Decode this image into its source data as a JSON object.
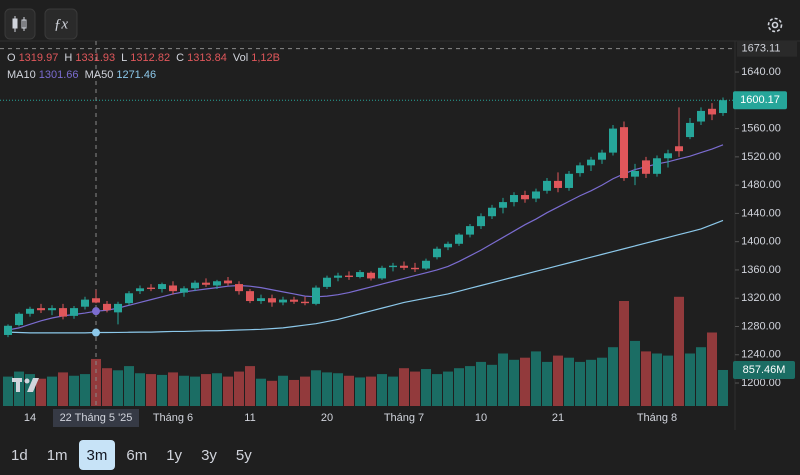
{
  "chart_data": {
    "type": "candlestick",
    "categories": [
      null,
      null,
      "14",
      null,
      null,
      null,
      null,
      null,
      "22 Tháng 5 '25",
      null,
      null,
      null,
      null,
      null,
      null,
      "Tháng 6",
      null,
      null,
      null,
      null,
      null,
      null,
      "11",
      null,
      null,
      null,
      null,
      null,
      null,
      "20",
      null,
      null,
      null,
      null,
      null,
      null,
      "Tháng 7",
      null,
      null,
      null,
      null,
      null,
      null,
      "10",
      null,
      null,
      null,
      null,
      null,
      null,
      "21",
      null,
      null,
      null,
      null,
      null,
      null,
      null,
      null,
      "Tháng 8",
      null,
      null,
      null,
      null,
      null,
      null
    ],
    "open": [
      1268,
      1282,
      1298,
      1306,
      1303,
      1306,
      1295,
      1308,
      1319.97,
      1312,
      1300,
      1313,
      1330,
      1335,
      1333,
      1338,
      1328,
      1334,
      1342,
      1338,
      1345,
      1340,
      1330,
      1316,
      1320,
      1314,
      1318,
      1315,
      1312,
      1336,
      1349,
      1352,
      1350,
      1356,
      1348,
      1364,
      1366,
      1363,
      1362,
      1378,
      1392,
      1397,
      1410,
      1422,
      1436,
      1448,
      1456,
      1466,
      1461,
      1472,
      1486,
      1476,
      1497,
      1508,
      1516,
      1526,
      1562,
      1492,
      1515,
      1496,
      1518,
      1535,
      1548,
      1570,
      1588,
      1582
    ],
    "high": [
      1283,
      1300,
      1308,
      1312,
      1310,
      1312,
      1309,
      1322,
      1331.93,
      1316,
      1315,
      1330,
      1338,
      1340,
      1342,
      1344,
      1337,
      1345,
      1348,
      1346,
      1350,
      1344,
      1333,
      1325,
      1325,
      1322,
      1322,
      1322,
      1338,
      1352,
      1356,
      1358,
      1360,
      1358,
      1366,
      1370,
      1372,
      1370,
      1376,
      1393,
      1400,
      1412,
      1425,
      1440,
      1452,
      1462,
      1470,
      1472,
      1475,
      1490,
      1498,
      1500,
      1512,
      1520,
      1530,
      1565,
      1570,
      1510,
      1520,
      1522,
      1530,
      1590,
      1575,
      1590,
      1596,
      1604
    ],
    "low": [
      1265,
      1280,
      1294,
      1299,
      1296,
      1290,
      1291,
      1304,
      1312.82,
      1300,
      1283,
      1310,
      1326,
      1330,
      1328,
      1325,
      1322,
      1330,
      1336,
      1333,
      1338,
      1325,
      1313,
      1312,
      1308,
      1310,
      1312,
      1310,
      1310,
      1333,
      1344,
      1346,
      1348,
      1345,
      1346,
      1358,
      1360,
      1357,
      1360,
      1375,
      1388,
      1394,
      1406,
      1418,
      1432,
      1440,
      1450,
      1455,
      1456,
      1468,
      1470,
      1472,
      1492,
      1500,
      1510,
      1522,
      1486,
      1480,
      1490,
      1492,
      1505,
      1520,
      1545,
      1565,
      1572,
      1578
    ],
    "close": [
      1281,
      1298,
      1305,
      1303,
      1306,
      1294,
      1306,
      1318,
      1313.84,
      1303,
      1312,
      1327,
      1334,
      1333,
      1340,
      1330,
      1334,
      1342,
      1339,
      1344,
      1341,
      1330,
      1316,
      1320,
      1314,
      1318,
      1315,
      1313,
      1335,
      1349,
      1352,
      1350,
      1357,
      1348,
      1363,
      1366,
      1363,
      1361,
      1373,
      1390,
      1397,
      1410,
      1422,
      1436,
      1448,
      1456,
      1466,
      1460,
      1471,
      1486,
      1476,
      1496,
      1508,
      1516,
      1526,
      1560,
      1490,
      1500,
      1496,
      1518,
      1525,
      1528,
      1568,
      1585,
      1580,
      1600.17
    ],
    "volume": [
      700,
      820,
      760,
      650,
      700,
      800,
      720,
      760,
      1120,
      900,
      850,
      950,
      780,
      760,
      740,
      800,
      720,
      700,
      760,
      780,
      700,
      820,
      950,
      650,
      600,
      720,
      620,
      700,
      850,
      800,
      780,
      720,
      680,
      700,
      760,
      700,
      900,
      820,
      880,
      760,
      820,
      900,
      950,
      1050,
      980,
      1250,
      1100,
      1150,
      1300,
      1050,
      1200,
      1150,
      1050,
      1100,
      1150,
      1400,
      2500,
      1550,
      1300,
      1250,
      1200,
      2600,
      1250,
      1400,
      1750,
      857.46
    ],
    "up_color": "#26a69a",
    "down_color": "#e0575b",
    "up_volume_color": "#1b6d64",
    "down_volume_color": "#923a3c",
    "series": [
      {
        "name": "MA10",
        "color": "#7b6cd0",
        "values": [
          1275,
          1278,
          1283,
          1288,
          1292,
          1295,
          1297,
          1299,
          1301.66,
          1303,
          1306,
          1310,
          1314,
          1318,
          1322,
          1326,
          1329,
          1331,
          1333,
          1335,
          1337,
          1338,
          1337,
          1335,
          1332,
          1329,
          1326,
          1323,
          1322,
          1323,
          1325,
          1328,
          1332,
          1336,
          1340,
          1344,
          1348,
          1352,
          1356,
          1360,
          1365,
          1372,
          1380,
          1388,
          1397,
          1406,
          1415,
          1424,
          1432,
          1441,
          1449,
          1457,
          1465,
          1472,
          1480,
          1489,
          1496,
          1502,
          1506,
          1510,
          1513,
          1517,
          1521,
          1526,
          1531,
          1537
        ]
      },
      {
        "name": "MA50",
        "color": "#8cc8ea",
        "values": [
          1272,
          1271.5,
          1271,
          1271,
          1271,
          1271,
          1271,
          1271,
          1271.46,
          1271.5,
          1271.6,
          1271.8,
          1272,
          1272,
          1272.5,
          1273,
          1273,
          1273.5,
          1274,
          1274,
          1274.5,
          1275,
          1275.5,
          1276,
          1277,
          1278,
          1280,
          1282,
          1284,
          1287,
          1290,
          1294,
          1298,
          1302,
          1306,
          1310,
          1314,
          1317,
          1320,
          1323,
          1326,
          1330,
          1334,
          1338,
          1342,
          1346,
          1350,
          1354,
          1358,
          1362,
          1366,
          1370,
          1374,
          1378,
          1382,
          1386,
          1390,
          1394,
          1398,
          1402,
          1406,
          1410,
          1414,
          1418,
          1424,
          1430
        ]
      }
    ],
    "ylim": [
      1160,
      1690
    ],
    "yticks": [
      {
        "value": 1200,
        "label": "1200.00"
      },
      {
        "value": 1240,
        "label": "1240.00"
      },
      {
        "value": 1280,
        "label": "1280.00"
      },
      {
        "value": 1320,
        "label": "1320.00"
      },
      {
        "value": 1360,
        "label": "1360.00"
      },
      {
        "value": 1400,
        "label": "1400.00"
      },
      {
        "value": 1440,
        "label": "1440.00"
      },
      {
        "value": 1480,
        "label": "1480.00"
      },
      {
        "value": 1520,
        "label": "1520.00"
      },
      {
        "value": 1560,
        "label": "1560.00"
      },
      {
        "value": 1640,
        "label": "1640.00"
      }
    ],
    "grid": false,
    "crosshair_index": 8,
    "crosshair_price": 1673.11,
    "legend_labels": [
      "O",
      "H",
      "L",
      "C",
      "Vol"
    ],
    "hover_volume_label": "1,12B",
    "last_volume_label": "857.46M",
    "ranges": [
      "1d",
      "1m",
      "3m",
      "6m",
      "1y",
      "3y",
      "5y"
    ],
    "active_range_index": 2
  }
}
